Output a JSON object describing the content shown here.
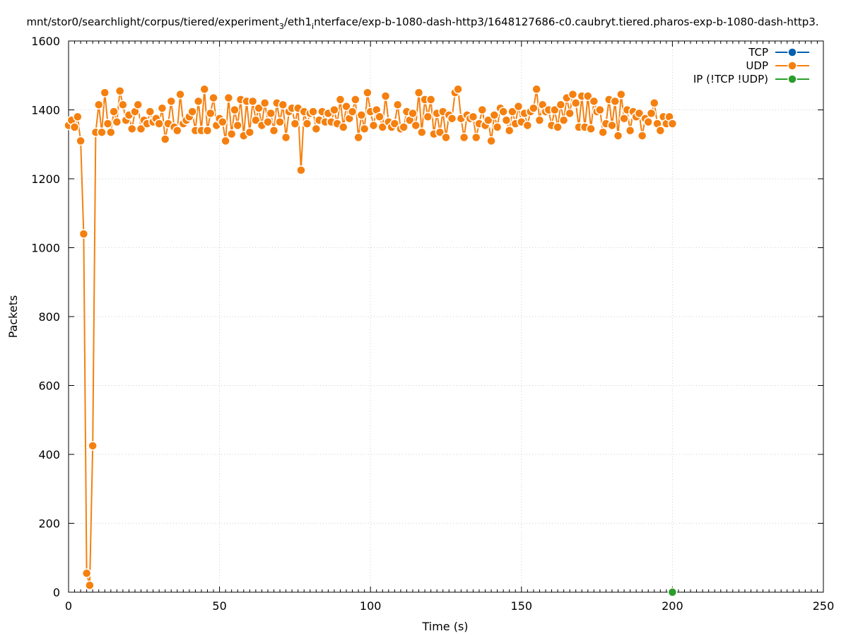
{
  "chart_data": {
    "type": "line",
    "title": "mnt/stor0/searchlight/corpus/tiered/experiment",
    "title_sub_1": "3",
    "title_mid": "/eth1",
    "title_sub_2": "i",
    "title_tail": "nterface/exp-b-1080-dash-http3/1648127686-c0.caubryt.tiered.pharos-exp-b-1080-dash-http3.",
    "xlabel": "Time (s)",
    "ylabel": "Packets",
    "xlim": [
      0,
      250
    ],
    "ylim": [
      0,
      1600
    ],
    "x_ticks": [
      0,
      50,
      100,
      150,
      200,
      250
    ],
    "y_ticks": [
      0,
      200,
      400,
      600,
      800,
      1000,
      1200,
      1400,
      1600
    ],
    "grid": true,
    "legend_position": "top-right",
    "series": [
      {
        "name": "TCP",
        "color": "#0060ad",
        "points": []
      },
      {
        "name": "UDP",
        "color": "#f5800f",
        "points": [
          [
            0,
            1355
          ],
          [
            1,
            1370
          ],
          [
            2,
            1350
          ],
          [
            3,
            1380
          ],
          [
            4,
            1310
          ],
          [
            5,
            1040
          ],
          [
            6,
            55
          ],
          [
            7,
            20
          ],
          [
            8,
            425
          ],
          [
            9,
            1335
          ],
          [
            10,
            1415
          ],
          [
            11,
            1335
          ],
          [
            12,
            1450
          ],
          [
            13,
            1360
          ],
          [
            14,
            1335
          ],
          [
            15,
            1395
          ],
          [
            16,
            1365
          ],
          [
            17,
            1455
          ],
          [
            18,
            1415
          ],
          [
            19,
            1370
          ],
          [
            20,
            1385
          ],
          [
            21,
            1345
          ],
          [
            22,
            1395
          ],
          [
            23,
            1415
          ],
          [
            24,
            1345
          ],
          [
            25,
            1370
          ],
          [
            26,
            1360
          ],
          [
            27,
            1395
          ],
          [
            28,
            1365
          ],
          [
            29,
            1375
          ],
          [
            30,
            1360
          ],
          [
            31,
            1405
          ],
          [
            32,
            1315
          ],
          [
            33,
            1360
          ],
          [
            34,
            1425
          ],
          [
            35,
            1350
          ],
          [
            36,
            1340
          ],
          [
            37,
            1445
          ],
          [
            38,
            1360
          ],
          [
            39,
            1370
          ],
          [
            40,
            1380
          ],
          [
            41,
            1395
          ],
          [
            42,
            1340
          ],
          [
            43,
            1425
          ],
          [
            44,
            1340
          ],
          [
            45,
            1460
          ],
          [
            46,
            1340
          ],
          [
            47,
            1390
          ],
          [
            48,
            1435
          ],
          [
            49,
            1355
          ],
          [
            50,
            1375
          ],
          [
            51,
            1365
          ],
          [
            52,
            1310
          ],
          [
            53,
            1435
          ],
          [
            54,
            1330
          ],
          [
            55,
            1400
          ],
          [
            56,
            1355
          ],
          [
            57,
            1430
          ],
          [
            58,
            1325
          ],
          [
            59,
            1425
          ],
          [
            60,
            1335
          ],
          [
            61,
            1425
          ],
          [
            62,
            1370
          ],
          [
            63,
            1405
          ],
          [
            64,
            1355
          ],
          [
            65,
            1420
          ],
          [
            66,
            1365
          ],
          [
            67,
            1390
          ],
          [
            68,
            1340
          ],
          [
            69,
            1420
          ],
          [
            70,
            1365
          ],
          [
            71,
            1415
          ],
          [
            72,
            1320
          ],
          [
            73,
            1395
          ],
          [
            74,
            1405
          ],
          [
            75,
            1360
          ],
          [
            76,
            1405
          ],
          [
            77,
            1225
          ],
          [
            78,
            1395
          ],
          [
            79,
            1360
          ],
          [
            80,
            1390
          ],
          [
            81,
            1395
          ],
          [
            82,
            1345
          ],
          [
            83,
            1370
          ],
          [
            84,
            1395
          ],
          [
            85,
            1365
          ],
          [
            86,
            1390
          ],
          [
            87,
            1365
          ],
          [
            88,
            1400
          ],
          [
            89,
            1360
          ],
          [
            90,
            1430
          ],
          [
            91,
            1350
          ],
          [
            92,
            1410
          ],
          [
            93,
            1375
          ],
          [
            94,
            1395
          ],
          [
            95,
            1430
          ],
          [
            96,
            1320
          ],
          [
            97,
            1385
          ],
          [
            98,
            1345
          ],
          [
            99,
            1450
          ],
          [
            100,
            1395
          ],
          [
            101,
            1355
          ],
          [
            102,
            1400
          ],
          [
            103,
            1380
          ],
          [
            104,
            1350
          ],
          [
            105,
            1440
          ],
          [
            106,
            1365
          ],
          [
            107,
            1350
          ],
          [
            108,
            1360
          ],
          [
            109,
            1415
          ],
          [
            110,
            1345
          ],
          [
            111,
            1350
          ],
          [
            112,
            1395
          ],
          [
            113,
            1370
          ],
          [
            114,
            1390
          ],
          [
            115,
            1355
          ],
          [
            116,
            1450
          ],
          [
            117,
            1335
          ],
          [
            118,
            1430
          ],
          [
            119,
            1380
          ],
          [
            120,
            1430
          ],
          [
            121,
            1330
          ],
          [
            122,
            1390
          ],
          [
            123,
            1335
          ],
          [
            124,
            1395
          ],
          [
            125,
            1320
          ],
          [
            126,
            1385
          ],
          [
            127,
            1375
          ],
          [
            128,
            1450
          ],
          [
            129,
            1460
          ],
          [
            130,
            1375
          ],
          [
            131,
            1320
          ],
          [
            132,
            1385
          ],
          [
            133,
            1375
          ],
          [
            134,
            1380
          ],
          [
            135,
            1320
          ],
          [
            136,
            1360
          ],
          [
            137,
            1400
          ],
          [
            138,
            1355
          ],
          [
            139,
            1370
          ],
          [
            140,
            1310
          ],
          [
            141,
            1385
          ],
          [
            142,
            1350
          ],
          [
            143,
            1405
          ],
          [
            144,
            1395
          ],
          [
            145,
            1370
          ],
          [
            146,
            1340
          ],
          [
            147,
            1395
          ],
          [
            148,
            1360
          ],
          [
            149,
            1410
          ],
          [
            150,
            1365
          ],
          [
            151,
            1390
          ],
          [
            152,
            1355
          ],
          [
            153,
            1395
          ],
          [
            154,
            1405
          ],
          [
            155,
            1460
          ],
          [
            156,
            1370
          ],
          [
            157,
            1415
          ],
          [
            158,
            1395
          ],
          [
            159,
            1400
          ],
          [
            160,
            1355
          ],
          [
            161,
            1400
          ],
          [
            162,
            1350
          ],
          [
            163,
            1415
          ],
          [
            164,
            1370
          ],
          [
            165,
            1435
          ],
          [
            166,
            1390
          ],
          [
            167,
            1445
          ],
          [
            168,
            1420
          ],
          [
            169,
            1350
          ],
          [
            170,
            1440
          ],
          [
            171,
            1350
          ],
          [
            172,
            1440
          ],
          [
            173,
            1345
          ],
          [
            174,
            1425
          ],
          [
            175,
            1395
          ],
          [
            176,
            1400
          ],
          [
            177,
            1335
          ],
          [
            178,
            1360
          ],
          [
            179,
            1430
          ],
          [
            180,
            1355
          ],
          [
            181,
            1425
          ],
          [
            182,
            1325
          ],
          [
            183,
            1445
          ],
          [
            184,
            1375
          ],
          [
            185,
            1400
          ],
          [
            186,
            1340
          ],
          [
            187,
            1395
          ],
          [
            188,
            1380
          ],
          [
            189,
            1390
          ],
          [
            190,
            1325
          ],
          [
            191,
            1375
          ],
          [
            192,
            1365
          ],
          [
            193,
            1390
          ],
          [
            194,
            1420
          ],
          [
            195,
            1360
          ],
          [
            196,
            1340
          ],
          [
            197,
            1380
          ],
          [
            198,
            1360
          ],
          [
            199,
            1380
          ],
          [
            200,
            1360
          ]
        ]
      },
      {
        "name": "IP (!TCP  !UDP)",
        "color": "#2a9d2a",
        "points": [
          [
            200,
            0
          ]
        ]
      }
    ]
  }
}
